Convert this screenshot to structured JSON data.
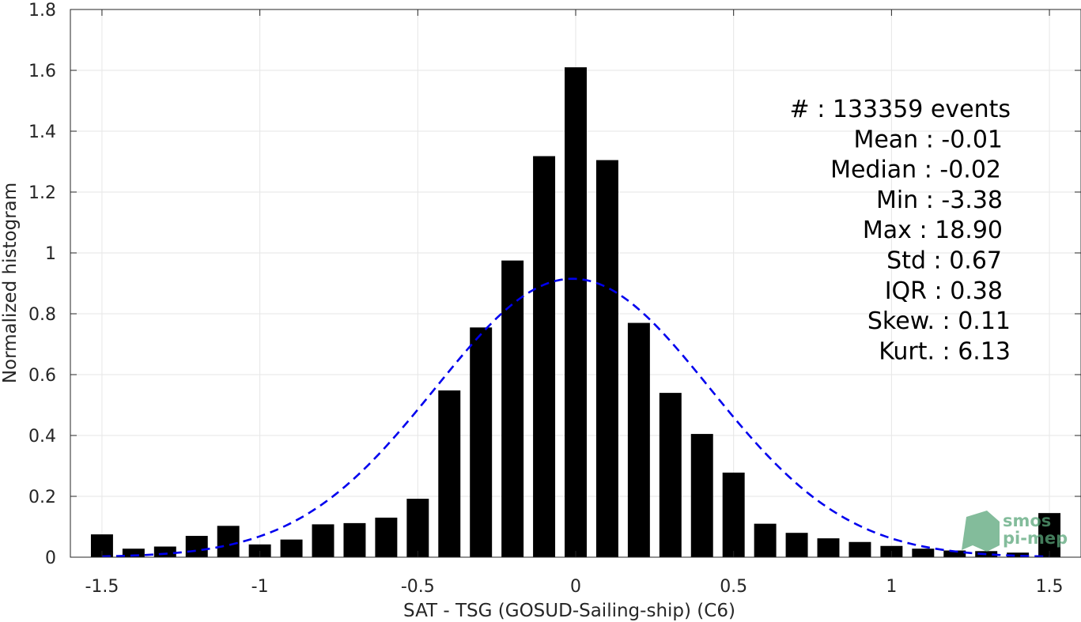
{
  "chart_data": {
    "type": "bar",
    "xlabel": "SAT - TSG (GOSUD-Sailing-ship) (C6)",
    "ylabel": "Normalized histogram",
    "xlim": [
      -1.6,
      1.6
    ],
    "ylim": [
      0,
      1.8
    ],
    "xticks": [
      -1.5,
      -1,
      -0.5,
      0,
      0.5,
      1,
      1.5
    ],
    "xtick_labels": [
      "-1.5",
      "-1",
      "-0.5",
      "0",
      "0.5",
      "1",
      "1.5"
    ],
    "yticks": [
      0,
      0.2,
      0.4,
      0.6,
      0.8,
      1,
      1.2,
      1.4,
      1.6,
      1.8
    ],
    "ytick_labels": [
      "0",
      "0.2",
      "0.4",
      "0.6",
      "0.8",
      "1",
      "1.2",
      "1.4",
      "1.6",
      "1.8"
    ],
    "grid": true,
    "bar_width": 0.07,
    "bar_color": "#000000",
    "x": [
      -1.5,
      -1.4,
      -1.3,
      -1.2,
      -1.1,
      -1.0,
      -0.9,
      -0.8,
      -0.7,
      -0.6,
      -0.5,
      -0.4,
      -0.3,
      -0.2,
      -0.1,
      0.0,
      0.1,
      0.2,
      0.3,
      0.4,
      0.5,
      0.6,
      0.7,
      0.8,
      0.9,
      1.0,
      1.1,
      1.2,
      1.3,
      1.4,
      1.5
    ],
    "values": [
      0.075,
      0.028,
      0.035,
      0.07,
      0.103,
      0.042,
      0.058,
      0.108,
      0.112,
      0.13,
      0.192,
      0.548,
      0.755,
      0.975,
      1.318,
      1.61,
      1.305,
      0.77,
      0.54,
      0.405,
      0.278,
      0.11,
      0.08,
      0.062,
      0.05,
      0.037,
      0.028,
      0.022,
      0.02,
      0.015,
      0.145
    ],
    "fit_curve": {
      "type": "normal",
      "mean": -0.01,
      "std": 0.435,
      "peak": 0.915,
      "color": "#0000ee",
      "style": "dashed"
    },
    "stats_box": {
      "placement": "top-right",
      "lines": [
        "#  : 133359 events",
        "Mean : -0.01",
        "Median : -0.02",
        "Min : -3.38",
        "Max : 18.90",
        "Std : 0.67",
        "IQR : 0.38",
        "Skew. : 0.11",
        "Kurt. : 6.13"
      ]
    }
  },
  "logo": {
    "line1": "smos",
    "line2": "pi-mep",
    "color": "#5aa67a"
  }
}
